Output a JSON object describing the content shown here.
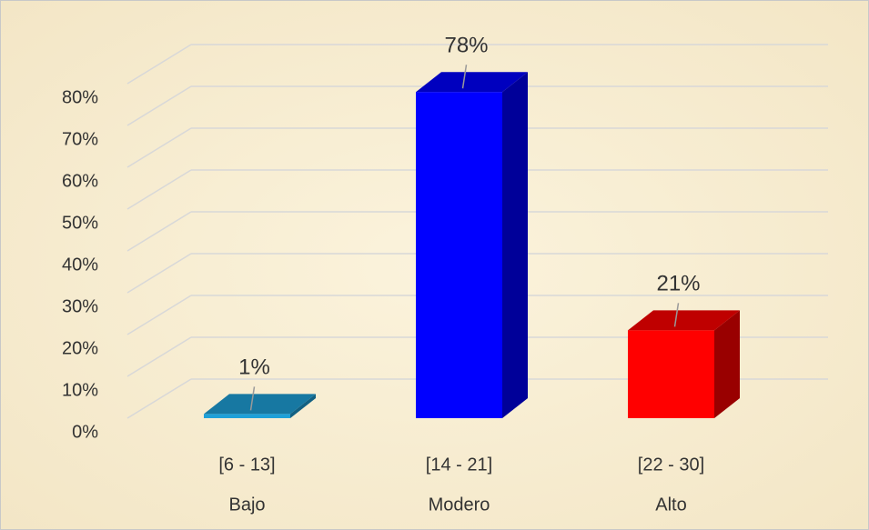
{
  "chart_data": {
    "type": "bar3d",
    "categories": [
      [
        "[6 - 13]",
        "Bajo"
      ],
      [
        "[14 - 21]",
        "Modero"
      ],
      [
        "[22 - 30]",
        "Alto"
      ]
    ],
    "values": [
      1,
      78,
      21
    ],
    "value_labels": [
      "1%",
      "78%",
      "21%"
    ],
    "colors": [
      "#1ea0d8",
      "#0000ff",
      "#ff0000"
    ],
    "ylim": [
      0,
      80
    ],
    "yticks": [
      {
        "value": 0,
        "label": "0%"
      },
      {
        "value": 10,
        "label": "10%"
      },
      {
        "value": 20,
        "label": "20%"
      },
      {
        "value": 30,
        "label": "30%"
      },
      {
        "value": 40,
        "label": "40%"
      },
      {
        "value": 50,
        "label": "50%"
      },
      {
        "value": 60,
        "label": "60%"
      },
      {
        "value": 70,
        "label": "70%"
      },
      {
        "value": 80,
        "label": "80%"
      }
    ],
    "grid": true
  }
}
